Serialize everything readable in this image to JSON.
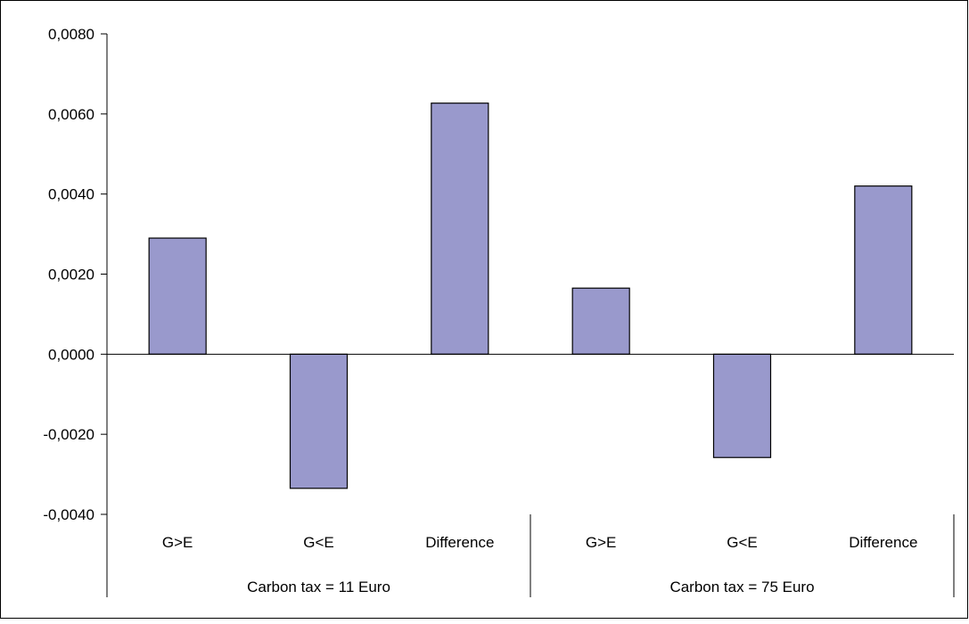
{
  "chart_data": {
    "type": "bar",
    "groups": [
      {
        "label": "Carbon tax = 11 Euro",
        "categories": [
          "G>E",
          "G<E",
          "Difference"
        ]
      },
      {
        "label": "Carbon tax = 75 Euro",
        "categories": [
          "G>E",
          "G<E",
          "Difference"
        ]
      }
    ],
    "categories": [
      "G>E",
      "G<E",
      "Difference",
      "G>E",
      "G<E",
      "Difference"
    ],
    "values": [
      0.0029,
      -0.00335,
      0.00627,
      0.00165,
      -0.00258,
      0.0042
    ],
    "ylim": [
      -0.004,
      0.008
    ],
    "yticks": [
      0.008,
      0.006,
      0.004,
      0.002,
      0.0,
      -0.002,
      -0.004
    ],
    "ytick_labels": [
      "0,0080",
      "0,0060",
      "0,0040",
      "0,0020",
      "0,0000",
      "-0,0020",
      "-0,0040"
    ],
    "grid": false,
    "legend": "none",
    "colors": {
      "bar_fill": "#9999cc",
      "bar_stroke": "#000000",
      "axis": "#000000",
      "border": "#000000"
    }
  }
}
